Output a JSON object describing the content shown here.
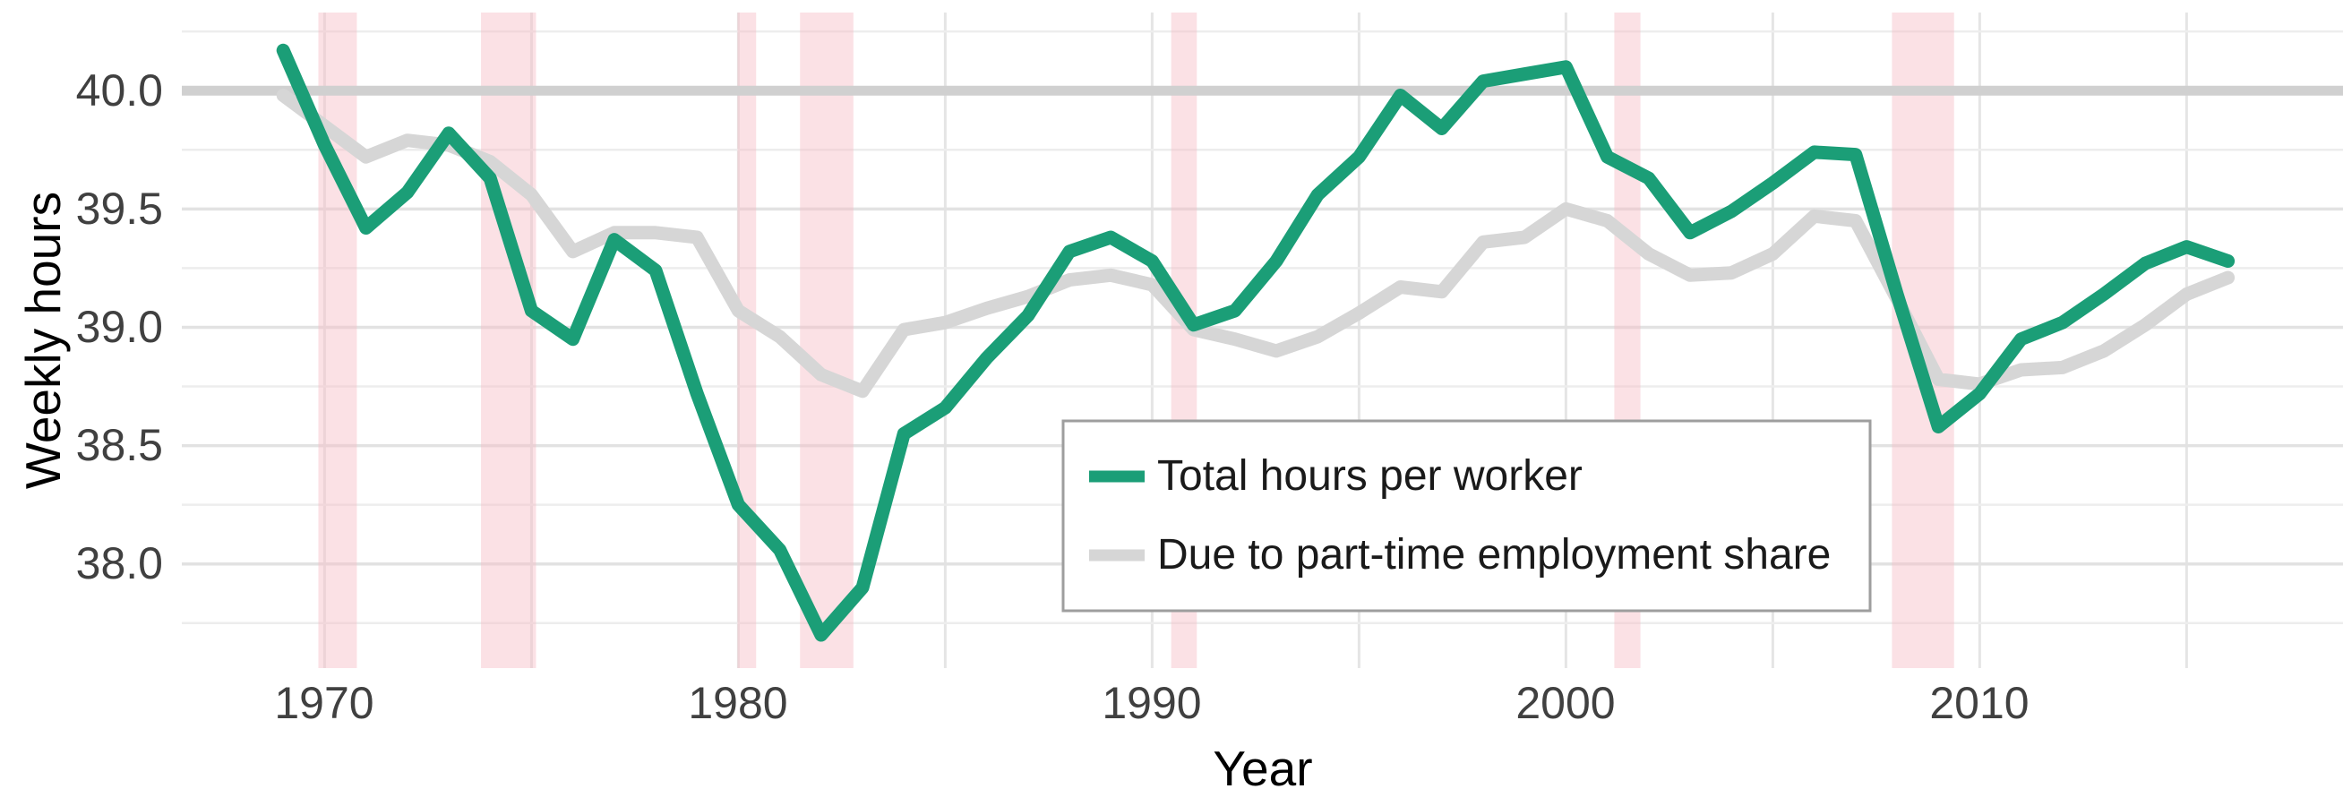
{
  "chart_data": {
    "type": "line",
    "title": "",
    "xlabel": "Year",
    "ylabel": "Weekly hours",
    "xlim": [
      1966.55,
      2018.78
    ],
    "ylim": [
      37.56,
      40.33
    ],
    "grid": "on",
    "legend_position": "inside-center-right",
    "x_ticks": [
      1970,
      1980,
      1990,
      2000,
      2010
    ],
    "x_tick_labels": [
      "1970",
      "1980",
      "1990",
      "2000",
      "2010"
    ],
    "y_ticks": [
      38.0,
      38.5,
      39.0,
      39.5,
      40.0
    ],
    "y_tick_labels": [
      "38.0",
      "38.5",
      "39.0",
      "39.5",
      "40.0"
    ],
    "y_minor_gridlines": [
      37.75,
      38.25,
      38.75,
      39.25,
      39.75,
      40.25
    ],
    "x_gridlines": [
      1970,
      1975,
      1980,
      1985,
      1990,
      1995,
      2000,
      2005,
      2010,
      2015
    ],
    "reference_line_y": 40.0,
    "x": [
      1969,
      1970,
      1971,
      1972,
      1973,
      1974,
      1975,
      1976,
      1977,
      1978,
      1979,
      1980,
      1981,
      1982,
      1983,
      1984,
      1985,
      1986,
      1987,
      1988,
      1989,
      1990,
      1991,
      1992,
      1993,
      1994,
      1995,
      1996,
      1997,
      1998,
      1999,
      2000,
      2001,
      2002,
      2003,
      2004,
      2005,
      2006,
      2007,
      2008,
      2009,
      2010,
      2011,
      2012,
      2013,
      2014,
      2015,
      2016
    ],
    "series": [
      {
        "name": "Total hours per worker",
        "color": "#1b9e77",
        "values": [
          40.17,
          39.77,
          39.42,
          39.57,
          39.82,
          39.63,
          39.07,
          38.95,
          39.37,
          39.24,
          38.72,
          38.25,
          38.06,
          37.7,
          37.9,
          38.55,
          38.66,
          38.87,
          39.05,
          39.32,
          39.38,
          39.28,
          39.01,
          39.07,
          39.28,
          39.56,
          39.72,
          39.98,
          39.84,
          40.04,
          40.07,
          40.1,
          39.72,
          39.63,
          39.4,
          39.49,
          39.61,
          39.74,
          39.73,
          39.14,
          38.58,
          38.72,
          38.95,
          39.02,
          39.14,
          39.27,
          39.34,
          39.28
        ]
      },
      {
        "name": "Due to part-time employment share",
        "color": "#d6d6d6",
        "values": [
          39.98,
          39.85,
          39.72,
          39.79,
          39.77,
          39.7,
          39.56,
          39.32,
          39.4,
          39.4,
          39.38,
          39.07,
          38.96,
          38.8,
          38.73,
          38.99,
          39.02,
          39.08,
          39.13,
          39.2,
          39.22,
          39.18,
          38.99,
          38.95,
          38.9,
          38.96,
          39.06,
          39.17,
          39.15,
          39.36,
          39.38,
          39.5,
          39.45,
          39.31,
          39.22,
          39.23,
          39.31,
          39.47,
          39.45,
          39.12,
          38.78,
          38.76,
          38.82,
          38.83,
          38.9,
          39.01,
          39.14,
          39.21
        ]
      }
    ],
    "recession_bands": [
      [
        1969.85,
        1970.78
      ],
      [
        1973.78,
        1975.11
      ],
      [
        1979.98,
        1980.43
      ],
      [
        1981.49,
        1982.78
      ],
      [
        1990.46,
        1991.08
      ],
      [
        2001.17,
        2001.8
      ],
      [
        2007.88,
        2009.38
      ]
    ],
    "colors": {
      "band_fill": "rgba(246,188,197,0.45)",
      "reference_line": "#d0d0d0",
      "grid_major": "#e2e2e2",
      "grid_minor": "#ededed",
      "grid_vertical": "#e5e5e5",
      "legend_border": "#9e9e9e",
      "tick_text": "#404040",
      "title_text": "#000000"
    }
  }
}
